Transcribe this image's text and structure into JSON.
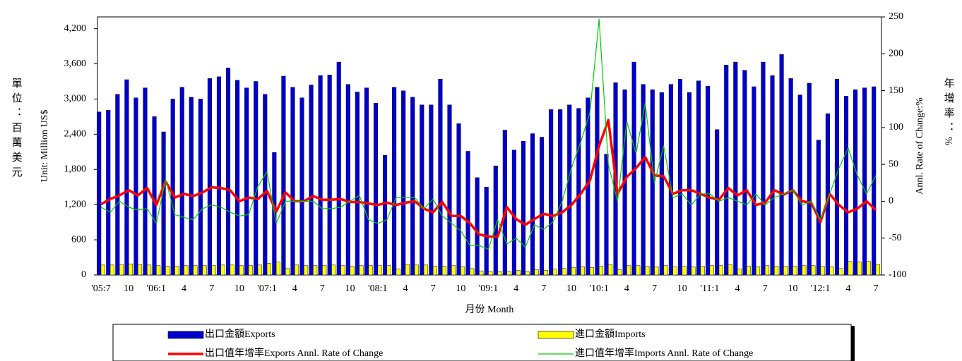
{
  "chart_data": {
    "type": "bar",
    "categories": [
      "'05:7",
      null,
      null,
      "10",
      null,
      null,
      "'06:1",
      null,
      null,
      "4",
      null,
      null,
      "7",
      null,
      null,
      "10",
      null,
      null,
      "'07:1",
      null,
      null,
      "4",
      null,
      null,
      "7",
      null,
      null,
      "10",
      null,
      null,
      "'08:1",
      null,
      null,
      "4",
      null,
      null,
      "7",
      null,
      null,
      "10",
      null,
      null,
      "'09:1",
      null,
      null,
      "4",
      null,
      null,
      "7",
      null,
      null,
      "10",
      null,
      null,
      "'10:1",
      null,
      null,
      "4",
      null,
      null,
      "7",
      null,
      null,
      "10",
      null,
      null,
      "'11:1",
      null,
      null,
      "4",
      null,
      null,
      "7",
      null,
      null,
      "10",
      null,
      null,
      "'12:1",
      null,
      null,
      "4",
      null,
      null,
      "7"
    ],
    "series": [
      {
        "name": "出口金額Exports",
        "type": "bar",
        "color": "#0000cc",
        "values": [
          2780,
          2810,
          3080,
          3330,
          3020,
          3190,
          2700,
          2440,
          3000,
          3200,
          3030,
          3000,
          3350,
          3380,
          3530,
          3320,
          3190,
          3300,
          3080,
          2090,
          3390,
          3200,
          3020,
          3240,
          3400,
          3410,
          3630,
          3250,
          3120,
          3190,
          2930,
          2040,
          3200,
          3140,
          3030,
          2900,
          2900,
          3340,
          2900,
          2580,
          2110,
          1660,
          1500,
          1860,
          2470,
          2130,
          2280,
          2410,
          2350,
          2820,
          2820,
          2900,
          2840,
          3020,
          3200,
          2060,
          3280,
          3160,
          3630,
          3250,
          3160,
          3110,
          3250,
          3340,
          3110,
          3310,
          3220,
          2480,
          3580,
          3630,
          3490,
          3210,
          3630,
          3400,
          3760,
          3350,
          3070,
          3270,
          2300,
          2750,
          3340,
          3050,
          3160,
          3190,
          3210
        ]
      },
      {
        "name": "進口金額Imports",
        "type": "bar",
        "color": "#ffff00",
        "values": [
          170,
          170,
          180,
          190,
          180,
          170,
          160,
          150,
          150,
          160,
          160,
          160,
          160,
          170,
          170,
          160,
          160,
          170,
          200,
          220,
          110,
          170,
          160,
          160,
          160,
          170,
          160,
          150,
          160,
          160,
          160,
          160,
          100,
          180,
          170,
          170,
          150,
          150,
          160,
          140,
          110,
          70,
          60,
          60,
          60,
          80,
          60,
          90,
          80,
          100,
          110,
          130,
          140,
          130,
          150,
          180,
          90,
          160,
          160,
          150,
          140,
          160,
          140,
          150,
          140,
          150,
          160,
          160,
          180,
          100,
          150,
          140,
          160,
          150,
          150,
          150,
          160,
          160,
          150,
          140,
          110,
          230,
          220,
          230,
          180
        ]
      },
      {
        "name": "出口值年增率Exports Annl. Rate of Change",
        "type": "line",
        "axis": "y2",
        "color": "#ff0000",
        "width": 3.5,
        "values": [
          -4,
          3,
          8,
          15,
          8,
          18,
          -5,
          27,
          5,
          10,
          7,
          12,
          19,
          18,
          15,
          0,
          5,
          3,
          14,
          -14,
          12,
          0,
          0,
          7,
          2,
          2,
          3,
          -1,
          -1,
          -3,
          -5,
          -2,
          -5,
          -2,
          0,
          -10,
          -15,
          -1,
          -20,
          -20,
          -30,
          -45,
          -48,
          -48,
          -8,
          -24,
          -32,
          -24,
          -17,
          -20,
          -15,
          -5,
          10,
          28,
          75,
          110,
          10,
          33,
          45,
          60,
          35,
          34,
          10,
          15,
          15,
          10,
          5,
          2,
          18,
          8,
          15,
          -5,
          -2,
          15,
          9,
          15,
          0,
          -2,
          -28,
          10,
          -5,
          -15,
          -10,
          0,
          -12
        ]
      },
      {
        "name": "進口值年增率Imports Annl. Rate of Change",
        "type": "line",
        "axis": "y2",
        "color": "#00cc00",
        "width": 1.2,
        "values": [
          -8,
          -15,
          0,
          -8,
          -12,
          -10,
          -30,
          30,
          -18,
          -22,
          -25,
          -10,
          -5,
          -8,
          -15,
          -20,
          -18,
          20,
          40,
          -30,
          0,
          0,
          0,
          0,
          -10,
          -10,
          -8,
          0,
          8,
          -25,
          -30,
          -25,
          5,
          5,
          5,
          -10,
          3,
          -20,
          -30,
          -40,
          -60,
          -60,
          -65,
          -25,
          -58,
          -50,
          -62,
          -32,
          -38,
          -28,
          0,
          45,
          80,
          120,
          247,
          50,
          0,
          108,
          65,
          133,
          25,
          75,
          5,
          10,
          -5,
          10,
          10,
          0,
          5,
          0,
          -5,
          10,
          -5,
          5,
          10,
          15,
          -5,
          0,
          -25,
          10,
          45,
          72,
          35,
          10,
          35
        ]
      }
    ],
    "ylim": [
      0,
      4400
    ],
    "yticks": [
      0,
      600,
      {
        "value": 1200,
        "label": "1,200"
      },
      {
        "value": 1800,
        "label": "1,800"
      },
      {
        "value": 2400,
        "label": "2,400"
      },
      {
        "value": 3000,
        "label": "3,000"
      },
      {
        "value": 3600,
        "label": "3,600"
      },
      {
        "value": 4200,
        "label": "4,200"
      }
    ],
    "y2lim": [
      -100,
      250
    ],
    "y2ticks": [
      -100,
      -50,
      0,
      50,
      100,
      150,
      200,
      250
    ],
    "ylabel": "Unit: Million US$",
    "ylabel_zh": "單位：百萬美元",
    "y2label": "Annl. Rate of Change:%",
    "y2label_zh": "年增率：%",
    "xlabel": "月份 Month"
  }
}
